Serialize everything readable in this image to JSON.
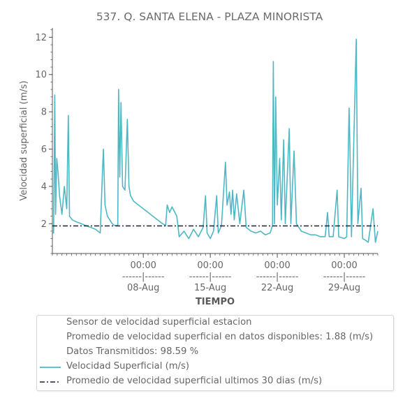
{
  "chart_data": {
    "type": "line",
    "title": "537. Q. SANTA ELENA - PLAZA MINORISTA",
    "xlabel": "TIEMPO",
    "ylabel": "Velocidad superficial (m/s)",
    "x_range": [
      "2023-07-29 12:00",
      "2023-09-01 12:00"
    ],
    "ylim": [
      0.4,
      12.5
    ],
    "y_ticks": [
      2,
      4,
      6,
      8,
      10,
      12
    ],
    "x_ticks": [
      {
        "time": "00:00",
        "sep": "------|------",
        "date": "08-Aug",
        "at": "2023-08-08 00:00"
      },
      {
        "time": "00:00",
        "sep": "------|------",
        "date": "15-Aug",
        "at": "2023-08-15 00:00"
      },
      {
        "time": "00:00",
        "sep": "------|------",
        "date": "22-Aug",
        "at": "2023-08-22 00:00"
      },
      {
        "time": "00:00",
        "sep": "------|------",
        "date": "29-Aug",
        "at": "2023-08-29 00:00"
      }
    ],
    "grid": false,
    "legend_position": "bottom",
    "series": [
      {
        "name": "Velocidad Superficial (m/s)",
        "color": "#4db8c4",
        "style": "solid",
        "points": [
          [
            "2023-07-29 12:00",
            1.6
          ],
          [
            "2023-07-29 15:00",
            1.5
          ],
          [
            "2023-07-29 18:00",
            8.9
          ],
          [
            "2023-07-29 20:00",
            2.5
          ],
          [
            "2023-07-29 23:00",
            5.5
          ],
          [
            "2023-07-30 02:00",
            4.8
          ],
          [
            "2023-07-30 06:00",
            3.5
          ],
          [
            "2023-07-30 12:00",
            2.5
          ],
          [
            "2023-07-30 18:00",
            4.0
          ],
          [
            "2023-07-31 00:00",
            2.8
          ],
          [
            "2023-07-31 04:00",
            7.8
          ],
          [
            "2023-07-31 07:00",
            2.4
          ],
          [
            "2023-07-31 14:00",
            2.2
          ],
          [
            "2023-08-01 00:00",
            2.1
          ],
          [
            "2023-08-01 12:00",
            2.0
          ],
          [
            "2023-08-02 00:00",
            1.9
          ],
          [
            "2023-08-02 12:00",
            1.8
          ],
          [
            "2023-08-03 00:00",
            1.7
          ],
          [
            "2023-08-03 06:00",
            1.6
          ],
          [
            "2023-08-03 12:00",
            1.5
          ],
          [
            "2023-08-03 18:00",
            5.0
          ],
          [
            "2023-08-03 20:00",
            6.0
          ],
          [
            "2023-08-04 00:00",
            3.0
          ],
          [
            "2023-08-04 06:00",
            2.4
          ],
          [
            "2023-08-04 12:00",
            2.2
          ],
          [
            "2023-08-04 18:00",
            2.0
          ],
          [
            "2023-08-05 00:00",
            1.9
          ],
          [
            "2023-08-05 08:00",
            1.9
          ],
          [
            "2023-08-05 10:00",
            9.2
          ],
          [
            "2023-08-05 13:00",
            4.5
          ],
          [
            "2023-08-05 16:00",
            8.5
          ],
          [
            "2023-08-05 20:00",
            4.0
          ],
          [
            "2023-08-06 02:00",
            3.8
          ],
          [
            "2023-08-06 08:00",
            7.6
          ],
          [
            "2023-08-06 12:00",
            4.0
          ],
          [
            "2023-08-06 16:00",
            3.5
          ],
          [
            "2023-08-07 00:00",
            3.2
          ],
          [
            "2023-08-07 12:00",
            3.0
          ],
          [
            "2023-08-08 00:00",
            2.8
          ],
          [
            "2023-08-08 12:00",
            2.6
          ],
          [
            "2023-08-09 00:00",
            2.4
          ],
          [
            "2023-08-09 12:00",
            2.2
          ],
          [
            "2023-08-10 00:00",
            2.0
          ],
          [
            "2023-08-10 08:00",
            1.9
          ],
          [
            "2023-08-10 12:00",
            3.0
          ],
          [
            "2023-08-10 18:00",
            2.6
          ],
          [
            "2023-08-11 00:00",
            2.9
          ],
          [
            "2023-08-11 12:00",
            2.4
          ],
          [
            "2023-08-11 18:00",
            1.3
          ],
          [
            "2023-08-12 06:00",
            1.6
          ],
          [
            "2023-08-12 18:00",
            1.2
          ],
          [
            "2023-08-13 06:00",
            1.7
          ],
          [
            "2023-08-13 18:00",
            1.3
          ],
          [
            "2023-08-14 06:00",
            1.8
          ],
          [
            "2023-08-14 12:00",
            3.5
          ],
          [
            "2023-08-14 16:00",
            1.5
          ],
          [
            "2023-08-15 00:00",
            1.2
          ],
          [
            "2023-08-15 08:00",
            1.6
          ],
          [
            "2023-08-15 16:00",
            3.5
          ],
          [
            "2023-08-15 20:00",
            1.5
          ],
          [
            "2023-08-16 04:00",
            1.9
          ],
          [
            "2023-08-16 14:00",
            5.3
          ],
          [
            "2023-08-16 18:00",
            3.0
          ],
          [
            "2023-08-17 00:00",
            3.7
          ],
          [
            "2023-08-17 04:00",
            2.5
          ],
          [
            "2023-08-17 08:00",
            3.8
          ],
          [
            "2023-08-17 12:00",
            2.2
          ],
          [
            "2023-08-17 18:00",
            3.6
          ],
          [
            "2023-08-18 02:00",
            2.0
          ],
          [
            "2023-08-18 12:00",
            3.8
          ],
          [
            "2023-08-18 18:00",
            1.8
          ],
          [
            "2023-08-19 06:00",
            1.6
          ],
          [
            "2023-08-19 18:00",
            1.5
          ],
          [
            "2023-08-20 06:00",
            1.6
          ],
          [
            "2023-08-20 18:00",
            1.4
          ],
          [
            "2023-08-21 06:00",
            1.5
          ],
          [
            "2023-08-21 12:00",
            1.9
          ],
          [
            "2023-08-21 14:00",
            10.7
          ],
          [
            "2023-08-21 17:00",
            2.0
          ],
          [
            "2023-08-21 20:00",
            8.8
          ],
          [
            "2023-08-22 00:00",
            3.0
          ],
          [
            "2023-08-22 06:00",
            5.5
          ],
          [
            "2023-08-22 10:00",
            2.2
          ],
          [
            "2023-08-22 16:00",
            6.5
          ],
          [
            "2023-08-22 20:00",
            2.0
          ],
          [
            "2023-08-23 06:00",
            7.1
          ],
          [
            "2023-08-23 10:00",
            2.0
          ],
          [
            "2023-08-23 18:00",
            5.9
          ],
          [
            "2023-08-24 00:00",
            2.0
          ],
          [
            "2023-08-24 12:00",
            1.6
          ],
          [
            "2023-08-25 00:00",
            1.5
          ],
          [
            "2023-08-25 12:00",
            1.4
          ],
          [
            "2023-08-26 00:00",
            1.4
          ],
          [
            "2023-08-26 12:00",
            1.3
          ],
          [
            "2023-08-27 00:00",
            1.3
          ],
          [
            "2023-08-27 06:00",
            2.6
          ],
          [
            "2023-08-27 10:00",
            1.3
          ],
          [
            "2023-08-27 20:00",
            1.3
          ],
          [
            "2023-08-28 06:00",
            3.8
          ],
          [
            "2023-08-28 10:00",
            1.3
          ],
          [
            "2023-08-29 00:00",
            1.2
          ],
          [
            "2023-08-29 06:00",
            1.3
          ],
          [
            "2023-08-29 12:00",
            8.2
          ],
          [
            "2023-08-29 14:00",
            6.3
          ],
          [
            "2023-08-29 18:00",
            1.3
          ],
          [
            "2023-08-30 06:00",
            11.9
          ],
          [
            "2023-08-30 10:00",
            2.0
          ],
          [
            "2023-08-30 18:00",
            3.9
          ],
          [
            "2023-08-30 22:00",
            1.2
          ],
          [
            "2023-08-31 06:00",
            1.1
          ],
          [
            "2023-08-31 12:00",
            1.0
          ],
          [
            "2023-09-01 00:00",
            2.8
          ],
          [
            "2023-09-01 06:00",
            1.0
          ],
          [
            "2023-09-01 12:00",
            1.6
          ]
        ]
      },
      {
        "name": "Promedio de velocidad superficial ultimos 30 dias (m/s)",
        "color": "#1e1e3a",
        "style": "dashdot",
        "value": 1.88
      }
    ]
  },
  "legend": {
    "lines": [
      "Sensor de velocidad superficial estacion",
      "Promedio de velocidad superficial en datos disponibles: 1.88 (m/s)",
      "Datos Transmitidos: 98.59 %",
      "Velocidad Superficial (m/s)",
      "Promedio de velocidad superficial ultimos 30 dias (m/s)"
    ]
  }
}
